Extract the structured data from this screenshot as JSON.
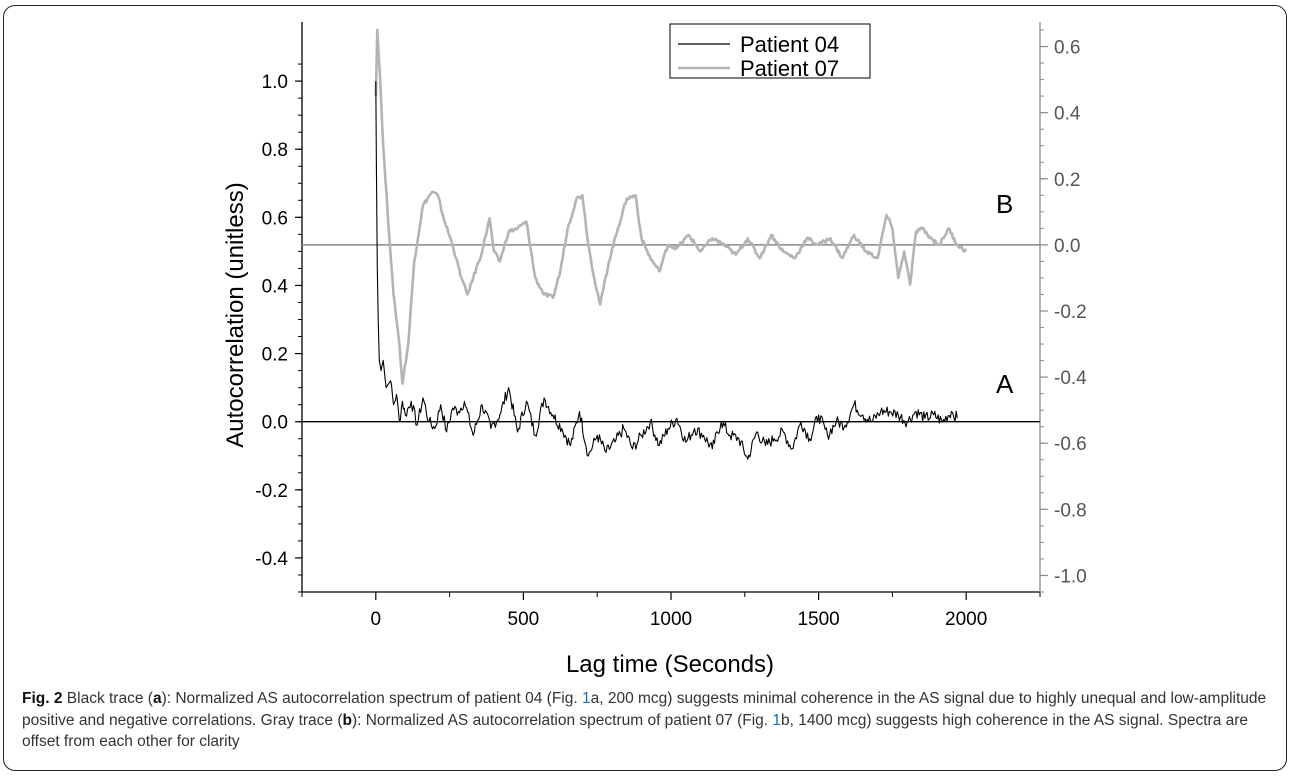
{
  "chart_data": {
    "type": "line",
    "title": "",
    "xlabel": "Lag time (Seconds)",
    "ylabel": "Autocorrelation (unitless)",
    "xlim": [
      -250,
      2250
    ],
    "ylim": [
      -0.5,
      1.15
    ],
    "y2lim": [
      -1.05,
      0.65
    ],
    "xticks": [
      0,
      500,
      1000,
      1500,
      2000
    ],
    "xtick_labels": [
      "0",
      "500",
      "1000",
      "1500",
      "2000"
    ],
    "yticks": [
      -0.4,
      -0.2,
      0.0,
      0.2,
      0.4,
      0.6,
      0.8,
      1.0
    ],
    "ytick_labels": [
      "-0.4",
      "-0.2",
      "0.0",
      "0.2",
      "0.4",
      "0.6",
      "0.8",
      "1.0"
    ],
    "y2ticks": [
      -1.0,
      -0.8,
      -0.6,
      -0.4,
      -0.2,
      0.0,
      0.2,
      0.4,
      0.6
    ],
    "y2tick_labels": [
      "-1.0",
      "-0.8",
      "-0.6",
      "-0.4",
      "-0.2",
      "0.0",
      "0.2",
      "0.4",
      "0.6"
    ],
    "grid": false,
    "legend_position": "top-right",
    "reference_lines": [
      {
        "axis": "left",
        "value": 0.0,
        "color": "#000000"
      },
      {
        "axis": "right",
        "value": 0.0,
        "color": "#888888"
      }
    ],
    "annotations": [
      {
        "text": "A",
        "x": 2130,
        "y": 0.1
      },
      {
        "text": "B",
        "x": 2130,
        "y": 0.61
      }
    ],
    "series": [
      {
        "name": "Patient 04",
        "axis": "left",
        "color": "#000000",
        "x": [
          0,
          2,
          5,
          8,
          12,
          18,
          25,
          35,
          50,
          60,
          70,
          80,
          90,
          100,
          120,
          140,
          160,
          180,
          200,
          220,
          240,
          260,
          280,
          300,
          330,
          360,
          390,
          420,
          450,
          480,
          510,
          540,
          570,
          600,
          630,
          660,
          690,
          720,
          750,
          780,
          810,
          840,
          870,
          900,
          930,
          960,
          990,
          1020,
          1050,
          1080,
          1110,
          1140,
          1170,
          1200,
          1230,
          1260,
          1290,
          1320,
          1350,
          1380,
          1410,
          1440,
          1470,
          1500,
          1530,
          1560,
          1590,
          1620,
          1650,
          1680,
          1710,
          1740,
          1770,
          1800,
          1830,
          1860,
          1890,
          1920,
          1950,
          1970
        ],
        "values": [
          1.0,
          0.75,
          0.45,
          0.3,
          0.18,
          0.15,
          0.18,
          0.1,
          0.12,
          0.05,
          0.08,
          0.0,
          0.06,
          0.02,
          0.06,
          -0.01,
          0.07,
          0.0,
          -0.02,
          0.05,
          -0.03,
          0.04,
          0.03,
          0.06,
          -0.04,
          0.05,
          -0.02,
          0.02,
          0.1,
          -0.03,
          0.06,
          -0.04,
          0.07,
          0.02,
          -0.02,
          -0.07,
          0.03,
          -0.1,
          -0.04,
          -0.09,
          -0.06,
          -0.02,
          -0.08,
          -0.04,
          0.0,
          -0.07,
          -0.02,
          0.01,
          -0.06,
          -0.02,
          -0.04,
          -0.08,
          0.0,
          -0.04,
          -0.05,
          -0.11,
          -0.03,
          -0.07,
          -0.05,
          -0.03,
          -0.08,
          0.0,
          -0.05,
          0.02,
          -0.04,
          0.0,
          -0.01,
          0.05,
          0.02,
          0.0,
          0.03,
          0.03,
          0.02,
          0.0,
          0.03,
          0.01,
          0.02,
          0.0,
          0.03,
          0.01
        ]
      },
      {
        "name": "Patient 07",
        "axis": "right",
        "color": "#b4b4b4",
        "x": [
          0,
          5,
          15,
          25,
          40,
          60,
          80,
          90,
          110,
          130,
          160,
          190,
          210,
          230,
          260,
          290,
          310,
          330,
          360,
          385,
          400,
          420,
          450,
          480,
          510,
          540,
          570,
          600,
          625,
          650,
          680,
          700,
          720,
          740,
          760,
          790,
          820,
          850,
          880,
          900,
          930,
          960,
          990,
          1020,
          1060,
          1100,
          1140,
          1180,
          1220,
          1260,
          1300,
          1340,
          1380,
          1420,
          1460,
          1500,
          1540,
          1580,
          1620,
          1660,
          1700,
          1730,
          1750,
          1770,
          1790,
          1810,
          1830,
          1850,
          1880,
          1910,
          1940,
          1970,
          2000
        ],
        "values": [
          0.45,
          0.65,
          0.5,
          0.3,
          0.1,
          -0.15,
          -0.3,
          -0.42,
          -0.3,
          -0.05,
          0.12,
          0.16,
          0.15,
          0.08,
          0.0,
          -0.1,
          -0.15,
          -0.1,
          -0.02,
          0.08,
          -0.02,
          -0.05,
          0.04,
          0.05,
          0.07,
          -0.1,
          -0.15,
          -0.16,
          -0.08,
          0.05,
          0.14,
          0.15,
          0.0,
          -0.1,
          -0.18,
          -0.05,
          0.05,
          0.14,
          0.15,
          0.02,
          -0.04,
          -0.08,
          0.0,
          -0.01,
          0.03,
          -0.02,
          0.02,
          0.0,
          -0.03,
          0.02,
          -0.04,
          0.03,
          -0.02,
          -0.04,
          0.02,
          0.0,
          0.02,
          -0.04,
          0.03,
          -0.02,
          -0.04,
          0.09,
          0.05,
          -0.1,
          -0.02,
          -0.12,
          0.04,
          0.05,
          0.02,
          0.0,
          0.05,
          0.0,
          -0.02
        ]
      }
    ]
  },
  "caption": {
    "fig_label": "Fig. 2",
    "t1": " Black trace (",
    "b1": "a",
    "t2": "): Normalized AS autocorrelation spectrum of patient 04 (Fig. ",
    "r1": "1",
    "t3": "a, 200 mcg) suggests minimal coherence in the AS signal due to highly unequal and low-amplitude positive and negative correlations. Gray trace (",
    "b2": "b",
    "t4": "): Normalized AS autocorrelation spectrum of patient 07 (Fig. ",
    "r2": "1",
    "t5": "b, 1400 mcg) suggests high coherence in the AS signal. Spectra are offset from each other for clarity"
  }
}
